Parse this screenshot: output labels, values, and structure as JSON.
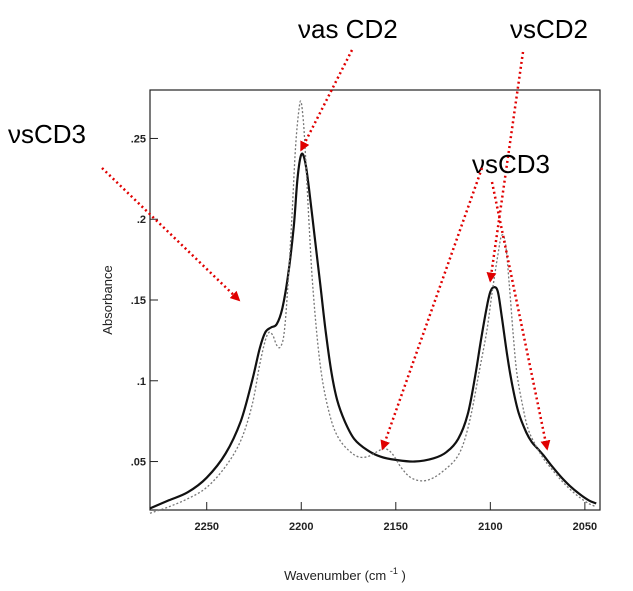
{
  "chart_data": {
    "type": "line",
    "title": "",
    "xlabel": "Wavenumber (cm",
    "xlabel_sup": "-1",
    "xlabel_close": ")",
    "ylabel": "Absorbance",
    "xlim": [
      2280,
      2042
    ],
    "x_reversed": true,
    "ylim": [
      0.02,
      0.28
    ],
    "xticks": [
      {
        "value": 2250,
        "label": "2250"
      },
      {
        "value": 2200,
        "label": "2200"
      },
      {
        "value": 2150,
        "label": "2150"
      },
      {
        "value": 2100,
        "label": "2100"
      },
      {
        "value": 2050,
        "label": "2050"
      }
    ],
    "yticks": [
      {
        "value": 0.05,
        "label": ".05"
      },
      {
        "value": 0.1,
        "label": ".1"
      },
      {
        "value": 0.15,
        "label": ".15"
      },
      {
        "value": 0.2,
        "label": ".2"
      },
      {
        "value": 0.25,
        "label": ".25"
      }
    ],
    "grid": false,
    "series": [
      {
        "style": "solid",
        "color": "#111111",
        "x": [
          2280,
          2270,
          2260,
          2250,
          2240,
          2232,
          2226,
          2222,
          2219,
          2216,
          2213,
          2210,
          2207,
          2204,
          2202,
          2200,
          2198,
          2196,
          2193,
          2190,
          2187,
          2184,
          2181,
          2177,
          2172,
          2165,
          2158,
          2150,
          2140,
          2130,
          2123,
          2117,
          2112,
          2108,
          2105,
          2102,
          2100,
          2098,
          2096,
          2094,
          2091,
          2088,
          2085,
          2081,
          2078,
          2075,
          2072,
          2068,
          2063,
          2058,
          2053,
          2048,
          2044
        ],
        "y": [
          0.021,
          0.026,
          0.031,
          0.04,
          0.055,
          0.075,
          0.1,
          0.12,
          0.13,
          0.133,
          0.135,
          0.145,
          0.165,
          0.195,
          0.225,
          0.24,
          0.236,
          0.22,
          0.19,
          0.16,
          0.13,
          0.105,
          0.088,
          0.075,
          0.064,
          0.057,
          0.053,
          0.051,
          0.05,
          0.052,
          0.056,
          0.064,
          0.079,
          0.103,
          0.125,
          0.145,
          0.155,
          0.158,
          0.155,
          0.14,
          0.115,
          0.095,
          0.08,
          0.068,
          0.062,
          0.058,
          0.054,
          0.048,
          0.041,
          0.035,
          0.03,
          0.026,
          0.024
        ]
      },
      {
        "style": "dotted",
        "color": "#777777",
        "x": [
          2280,
          2270,
          2260,
          2250,
          2240,
          2232,
          2226,
          2222,
          2219,
          2217,
          2215,
          2213,
          2211,
          2209,
          2207,
          2205,
          2203,
          2201,
          2200,
          2199,
          2198,
          2196,
          2194,
          2191,
          2188,
          2184,
          2180,
          2175,
          2170,
          2165,
          2160,
          2156,
          2152,
          2147,
          2142,
          2136,
          2130,
          2124,
          2118,
          2114,
          2110,
          2106,
          2102,
          2099,
          2096,
          2094,
          2092,
          2090,
          2088,
          2086,
          2083,
          2080,
          2076,
          2072,
          2068,
          2063,
          2058,
          2053,
          2048,
          2044
        ],
        "y": [
          0.018,
          0.022,
          0.027,
          0.034,
          0.047,
          0.063,
          0.085,
          0.11,
          0.125,
          0.13,
          0.128,
          0.122,
          0.121,
          0.13,
          0.16,
          0.2,
          0.245,
          0.27,
          0.272,
          0.262,
          0.245,
          0.2,
          0.16,
          0.12,
          0.095,
          0.075,
          0.064,
          0.057,
          0.053,
          0.053,
          0.056,
          0.058,
          0.055,
          0.046,
          0.04,
          0.038,
          0.04,
          0.045,
          0.052,
          0.062,
          0.08,
          0.105,
          0.13,
          0.155,
          0.178,
          0.19,
          0.185,
          0.16,
          0.13,
          0.105,
          0.085,
          0.07,
          0.06,
          0.052,
          0.046,
          0.039,
          0.033,
          0.028,
          0.024,
          0.022
        ]
      }
    ],
    "annotations": [
      {
        "text": "νas CD2",
        "target_x": 2200,
        "target_y": 0.243
      },
      {
        "text": "νsCD2",
        "target_x": 2100,
        "target_y": 0.162
      },
      {
        "text": "νsCD2",
        "target_x": 2070,
        "target_y": 0.058
      },
      {
        "text": "νsCD3",
        "target_x": 2233,
        "target_y": 0.15
      },
      {
        "text": "νsCD3",
        "target_x": 2157,
        "target_y": 0.058
      }
    ],
    "arrow_color": "#e00000"
  }
}
